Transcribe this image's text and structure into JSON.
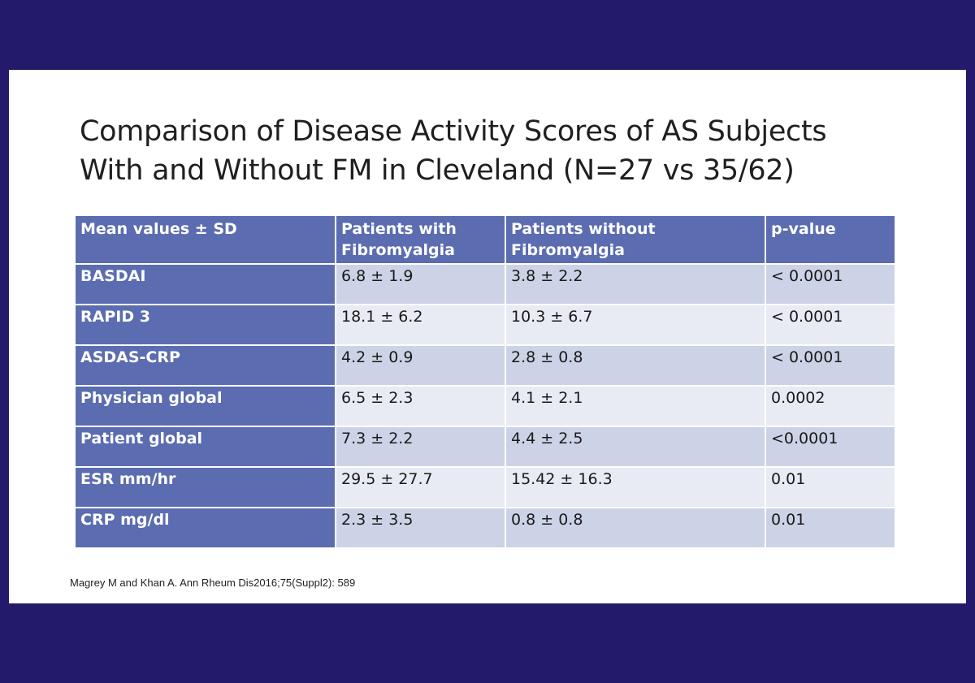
{
  "title": {
    "line1": "Comparison of Disease Activity Scores of AS Subjects",
    "line2": "With and Without FM in Cleveland (N=27 vs 35/62)"
  },
  "table": {
    "headers": [
      "Mean values ± SD",
      "Patients with Fibromyalgia",
      "Patients without Fibromyalgia",
      "p-value"
    ],
    "rows": [
      [
        "BASDAI",
        "6.8 ± 1.9",
        "3.8 ± 2.2",
        "< 0.0001"
      ],
      [
        "RAPID 3",
        "18.1 ± 6.2",
        "10.3 ± 6.7",
        "< 0.0001"
      ],
      [
        "ASDAS-CRP",
        "4.2 ± 0.9",
        "2.8 ± 0.8",
        "< 0.0001"
      ],
      [
        "Physician global",
        "6.5 ± 2.3",
        "4.1 ± 2.1",
        "0.0002"
      ],
      [
        "Patient global",
        "7.3 ± 2.2",
        "4.4 ± 2.5",
        "<0.0001"
      ],
      [
        "ESR mm/hr",
        "29.5 ± 27.7",
        "15.42 ± 16.3",
        "0.01"
      ],
      [
        "CRP mg/dl",
        "2.3 ± 3.5",
        "0.8 ± 0.8",
        "0.01"
      ]
    ]
  },
  "citation": "Magrey M and Khan A. Ann Rheum Dis2016;75(Suppl2): 589",
  "colors": {
    "frame": "#241a6b",
    "header_fill": "#5b6cb0",
    "row_dark": "#cdd3e6",
    "row_light": "#e8ebf4"
  }
}
